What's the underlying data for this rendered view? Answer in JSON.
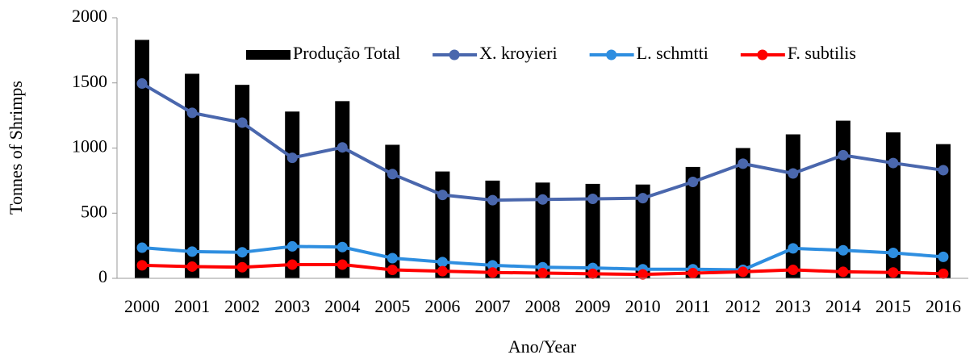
{
  "chart_data": {
    "type": "bar-line",
    "x_label": "Ano/Year",
    "y_label": "Tonnes of Shrimps",
    "categories": [
      "2000",
      "2001",
      "2002",
      "2003",
      "2004",
      "2005",
      "2006",
      "2007",
      "2008",
      "2009",
      "2010",
      "2011",
      "2012",
      "2013",
      "2014",
      "2015",
      "2016"
    ],
    "series": [
      {
        "name": "Produção Total",
        "type": "bar",
        "color": "#000000",
        "values": [
          1830,
          1570,
          1485,
          1280,
          1360,
          1025,
          820,
          750,
          735,
          725,
          720,
          855,
          1000,
          1105,
          1210,
          1120,
          1030
        ]
      },
      {
        "name": "X. kroyieri",
        "type": "line",
        "color": "#4a67ad",
        "values": [
          1495,
          1270,
          1195,
          925,
          1005,
          800,
          640,
          600,
          605,
          610,
          615,
          740,
          880,
          805,
          945,
          885,
          830
        ]
      },
      {
        "name": "L. schmtti",
        "type": "line",
        "color": "#2e8ee0",
        "values": [
          235,
          205,
          200,
          245,
          240,
          155,
          125,
          100,
          85,
          80,
          70,
          70,
          65,
          230,
          215,
          195,
          165
        ]
      },
      {
        "name": "F. subtilis",
        "type": "line",
        "color": "#ff0000",
        "values": [
          100,
          90,
          85,
          105,
          105,
          65,
          55,
          45,
          40,
          35,
          30,
          40,
          50,
          65,
          50,
          45,
          35
        ]
      }
    ],
    "ylim": [
      0,
      2000
    ],
    "yticks": [
      0,
      500,
      1000,
      1500,
      2000
    ],
    "grid": false,
    "legend": "top"
  }
}
